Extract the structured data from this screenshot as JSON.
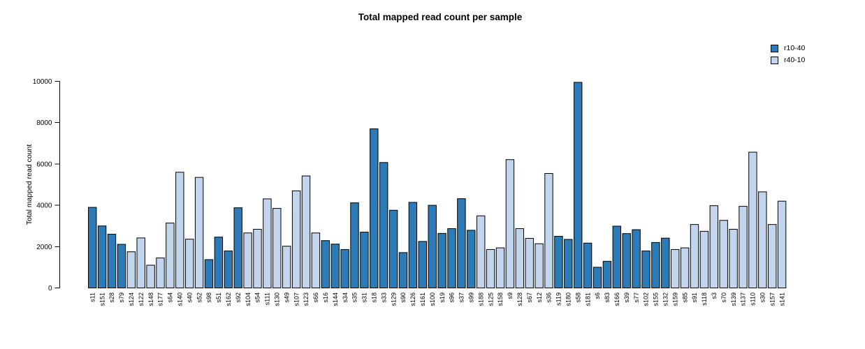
{
  "chart_data": {
    "type": "bar",
    "title": "Total mapped read count per sample",
    "xlabel": "",
    "ylabel": "Total mapped read count",
    "ylim": [
      0,
      10000
    ],
    "yticks": [
      0,
      2000,
      4000,
      6000,
      8000,
      10000
    ],
    "grid": false,
    "legend_position": "top-right",
    "bar_border_color": "#000000",
    "series": [
      {
        "name": "r10-40",
        "color": "#2c7bb6"
      },
      {
        "name": "r40-10",
        "color": "#c3d5ed"
      }
    ],
    "categories": [
      "s11",
      "s151",
      "s28",
      "s79",
      "s124",
      "s122",
      "s148",
      "s177",
      "s64",
      "s140",
      "s40",
      "s52",
      "s98",
      "s51",
      "s162",
      "s92",
      "s104",
      "s54",
      "s111",
      "s130",
      "s49",
      "s107",
      "s123",
      "s66",
      "s16",
      "s144",
      "s34",
      "s35",
      "s31",
      "s18",
      "s33",
      "s129",
      "s90",
      "s126",
      "s161",
      "s100",
      "s19",
      "s96",
      "s37",
      "s99",
      "s188",
      "s125",
      "s158",
      "s9",
      "s128",
      "s67",
      "s12",
      "s36",
      "s119",
      "s180",
      "s58",
      "s181",
      "s6",
      "s83",
      "s166",
      "s39",
      "s77",
      "s102",
      "s155",
      "s132",
      "s159",
      "s85",
      "s91",
      "s118",
      "s3",
      "s70",
      "s139",
      "s137",
      "s110",
      "s30",
      "s157",
      "s141"
    ],
    "values": [
      3900,
      3000,
      2600,
      2110,
      1750,
      2420,
      1100,
      1450,
      3140,
      5600,
      2360,
      5350,
      1370,
      2460,
      1790,
      3880,
      2660,
      2840,
      4310,
      3850,
      2020,
      4700,
      5420,
      2660,
      2290,
      2120,
      1860,
      4120,
      2700,
      7700,
      6070,
      3760,
      1710,
      4140,
      2250,
      4000,
      2640,
      2870,
      4320,
      2790,
      3490,
      1860,
      1940,
      6210,
      2870,
      2400,
      2140,
      5540,
      2500,
      2350,
      9950,
      2170,
      1000,
      1290,
      2990,
      2630,
      2820,
      1790,
      2200,
      2410,
      1860,
      1940,
      3070,
      2740,
      3980,
      3270,
      2840,
      3950,
      6570,
      4650,
      3070,
      4200
    ],
    "bar_series_index": [
      0,
      0,
      0,
      0,
      1,
      1,
      1,
      1,
      1,
      1,
      1,
      1,
      0,
      0,
      0,
      0,
      1,
      1,
      1,
      1,
      1,
      1,
      1,
      1,
      0,
      0,
      0,
      0,
      0,
      0,
      0,
      0,
      0,
      0,
      0,
      0,
      0,
      0,
      0,
      0,
      1,
      1,
      1,
      1,
      1,
      1,
      1,
      1,
      0,
      0,
      0,
      0,
      0,
      0,
      0,
      0,
      0,
      0,
      0,
      0,
      1,
      1,
      1,
      1,
      1,
      1,
      1,
      1,
      1,
      1,
      1,
      1
    ]
  }
}
